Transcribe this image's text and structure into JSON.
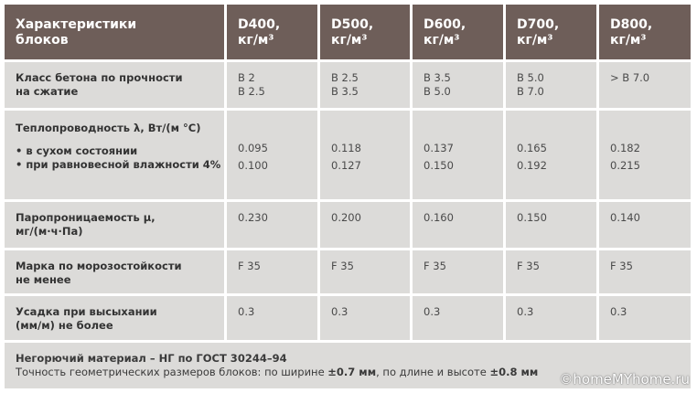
{
  "table": {
    "header": [
      [
        "Характеристики",
        "блоков"
      ],
      [
        "D400,",
        "кг/м³"
      ],
      [
        "D500,",
        "кг/м³"
      ],
      [
        "D600,",
        "кг/м³"
      ],
      [
        "D700,",
        "кг/м³"
      ],
      [
        "D800,",
        "кг/м³"
      ]
    ],
    "rows": [
      {
        "label": [
          "Класс бетона по прочности",
          "на сжатие"
        ],
        "values": [
          [
            "B 2",
            "B 2.5"
          ],
          [
            "B 2.5",
            "B 3.5"
          ],
          [
            "B 3.5",
            "B 5.0"
          ],
          [
            "B 5.0",
            "B 7.0"
          ],
          [
            "> B 7.0"
          ]
        ]
      },
      {
        "label": [
          "Теплопроводность λ, Вт/(м °С)",
          "• в сухом состоянии",
          "• при равновесной влажности 4%"
        ],
        "values": [
          [
            "0.095",
            "0.100"
          ],
          [
            "0.118",
            "0.127"
          ],
          [
            "0.137",
            "0.150"
          ],
          [
            "0.165",
            "0.192"
          ],
          [
            "0.182",
            "0.215"
          ]
        ]
      },
      {
        "label": [
          "Паропроницаемость μ,",
          "мг/(м·ч·Па)"
        ],
        "values": [
          [
            "0.230"
          ],
          [
            "0.200"
          ],
          [
            "0.160"
          ],
          [
            "0.150"
          ],
          [
            "0.140"
          ]
        ]
      },
      {
        "label": [
          "Марка по морозостойкости",
          "не менее"
        ],
        "values": [
          [
            "F 35"
          ],
          [
            "F 35"
          ],
          [
            "F 35"
          ],
          [
            "F 35"
          ],
          [
            "F 35"
          ]
        ]
      },
      {
        "label": [
          "Усадка при высыхании",
          "(мм/м) не более"
        ],
        "values": [
          [
            "0.3"
          ],
          [
            "0.3"
          ],
          [
            "0.3"
          ],
          [
            "0.3"
          ],
          [
            "0.3"
          ]
        ]
      }
    ],
    "footer": {
      "line1": "Негорючий материал – НГ по ГОСТ 30244–94",
      "line2": [
        "Точность геометрических размеров блоков: по ширине ",
        "±0.7 мм",
        ", по длине и высоте ",
        "±0.8 мм"
      ]
    },
    "watermark": "©homeMYhome.ru"
  }
}
